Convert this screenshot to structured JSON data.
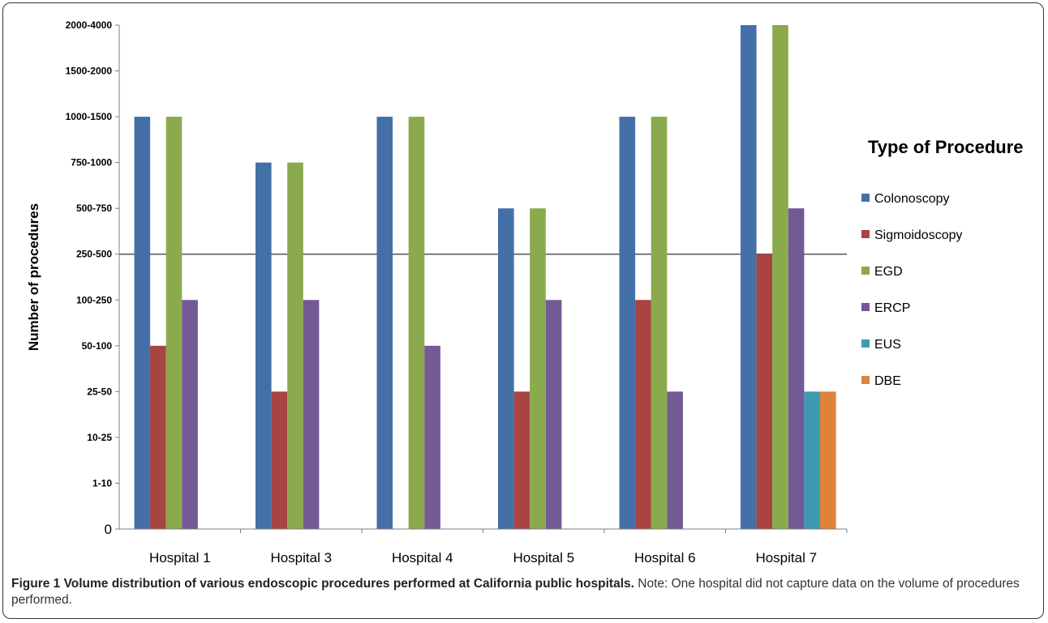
{
  "chart_data": {
    "type": "bar",
    "ylabel": "Number of procedures",
    "y_scale": "ordinal",
    "y_ticks": [
      "0",
      "1-10",
      "10-25",
      "25-50",
      "50-100",
      "100-250",
      "250-500",
      "500-750",
      "750-1000",
      "1000-1500",
      "1500-2000",
      "2000-4000"
    ],
    "categories": [
      "Hospital 1",
      "Hospital 3",
      "Hospital 4",
      "Hospital 5",
      "Hospital 6",
      "Hospital 7"
    ],
    "series": [
      {
        "name": "Colonoscopy",
        "color": "#4470a8",
        "values": [
          "1000-1500",
          "750-1000",
          "1000-1500",
          "500-750",
          "1000-1500",
          "2000-4000"
        ]
      },
      {
        "name": "Sigmoidoscopy",
        "color": "#a84442",
        "values": [
          "50-100",
          "25-50",
          null,
          "25-50",
          "100-250",
          "250-500"
        ]
      },
      {
        "name": "EGD",
        "color": "#8aaa4d",
        "values": [
          "1000-1500",
          "750-1000",
          "1000-1500",
          "500-750",
          "1000-1500",
          "2000-4000"
        ]
      },
      {
        "name": "ERCP",
        "color": "#735a95",
        "values": [
          "100-250",
          "100-250",
          "50-100",
          "100-250",
          "25-50",
          "500-750"
        ]
      },
      {
        "name": "EUS",
        "color": "#3d9bb1",
        "values": [
          null,
          null,
          null,
          null,
          null,
          "25-50"
        ]
      },
      {
        "name": "DBE",
        "color": "#e0833a",
        "values": [
          null,
          null,
          null,
          null,
          null,
          "25-50"
        ]
      }
    ],
    "grid": "single reference line at 250-500",
    "legend": {
      "title": "Type of Procedure",
      "position": "right"
    }
  },
  "caption": {
    "title": "Figure 1 Volume distribution of various endoscopic procedures performed at California public hospitals.",
    "note": "Note: One hospital did not capture data on the volume of procedures performed."
  }
}
